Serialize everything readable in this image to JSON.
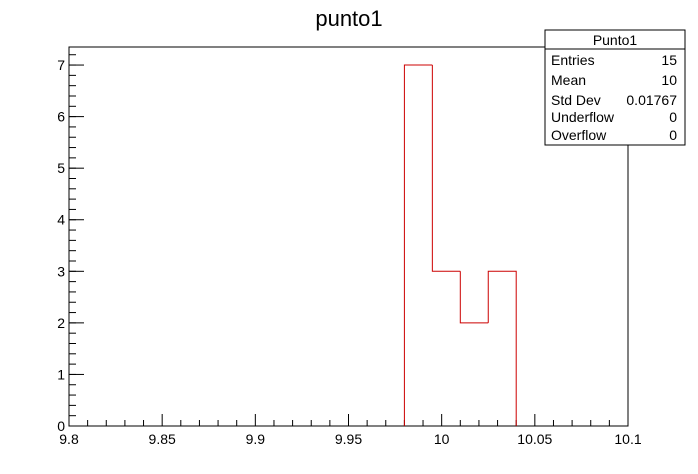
{
  "chart_data": {
    "type": "histogram",
    "title": "punto1",
    "xlabel": "",
    "ylabel": "",
    "xlim": [
      9.8,
      10.1
    ],
    "ylim": [
      0,
      7.35
    ],
    "x_ticks": [
      9.8,
      9.85,
      9.9,
      9.95,
      10,
      10.05,
      10.1
    ],
    "x_tick_labels": [
      "9.8",
      "9.85",
      "9.9",
      "9.95",
      "10",
      "10.05",
      "10.1"
    ],
    "y_ticks": [
      0,
      1,
      2,
      3,
      4,
      5,
      6,
      7
    ],
    "y_tick_labels": [
      "0",
      "1",
      "2",
      "3",
      "4",
      "5",
      "6",
      "7"
    ],
    "grid": false,
    "line_color": "#cc0000",
    "bins": [
      {
        "x_low": 9.98,
        "x_high": 9.995,
        "count": 7
      },
      {
        "x_low": 9.995,
        "x_high": 10.01,
        "count": 3
      },
      {
        "x_low": 10.01,
        "x_high": 10.025,
        "count": 2
      },
      {
        "x_low": 10.025,
        "x_high": 10.04,
        "count": 3
      }
    ]
  },
  "stats_box": {
    "title": "Punto1",
    "rows": [
      {
        "label": "Entries",
        "value": "15"
      },
      {
        "label": "Mean",
        "value": "10"
      },
      {
        "label": "Std Dev",
        "value": "0.01767"
      },
      {
        "label": "Underflow",
        "value": "0"
      },
      {
        "label": "Overflow",
        "value": "0"
      }
    ]
  }
}
